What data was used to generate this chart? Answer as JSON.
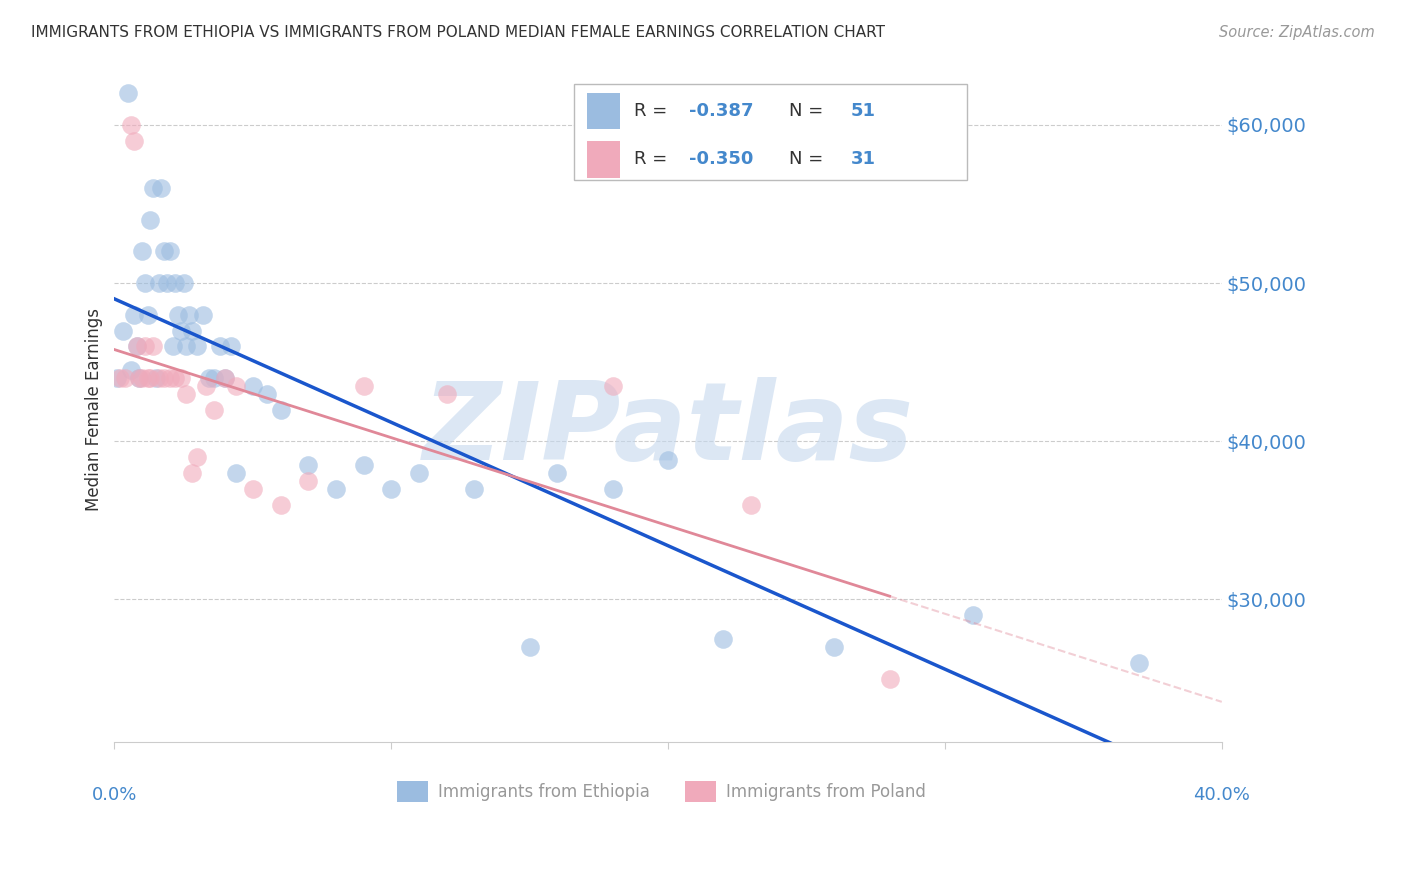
{
  "title": "IMMIGRANTS FROM ETHIOPIA VS IMMIGRANTS FROM POLAND MEDIAN FEMALE EARNINGS CORRELATION CHART",
  "source": "Source: ZipAtlas.com",
  "ylabel": "Median Female Earnings",
  "ytick_labels": [
    "$60,000",
    "$50,000",
    "$40,000",
    "$30,000"
  ],
  "ytick_values": [
    60000,
    50000,
    40000,
    30000
  ],
  "ymin": 21000,
  "ymax": 63000,
  "xmin": 0.0,
  "xmax": 0.4,
  "legend_R1": "-0.387",
  "legend_N1": "51",
  "legend_R2": "-0.350",
  "legend_N2": "31",
  "color_ethiopia": "#9BBCE0",
  "color_poland": "#F0AABB",
  "color_ethiopia_line": "#1a56cc",
  "color_poland_line": "#E08898",
  "color_axis": "#4488CC",
  "color_title": "#333333",
  "color_source": "#999999",
  "color_legend_text_black": "#333333",
  "color_legend_text_blue": "#4488CC",
  "watermark_text": "ZIPatlas",
  "watermark_color": "#C5D8EE",
  "bottom_legend_color": "#999999",
  "gridline_color": "#CCCCCC",
  "ethiopia_x": [
    0.001,
    0.003,
    0.005,
    0.006,
    0.007,
    0.008,
    0.009,
    0.01,
    0.011,
    0.012,
    0.013,
    0.014,
    0.015,
    0.016,
    0.017,
    0.018,
    0.019,
    0.02,
    0.021,
    0.022,
    0.023,
    0.024,
    0.025,
    0.026,
    0.027,
    0.028,
    0.03,
    0.032,
    0.034,
    0.036,
    0.038,
    0.04,
    0.042,
    0.044,
    0.05,
    0.055,
    0.06,
    0.07,
    0.08,
    0.09,
    0.1,
    0.11,
    0.13,
    0.15,
    0.16,
    0.18,
    0.2,
    0.22,
    0.26,
    0.31,
    0.37
  ],
  "ethiopia_y": [
    44000,
    47000,
    62000,
    44500,
    48000,
    46000,
    44000,
    52000,
    50000,
    48000,
    54000,
    56000,
    44000,
    50000,
    56000,
    52000,
    50000,
    52000,
    46000,
    50000,
    48000,
    47000,
    50000,
    46000,
    48000,
    47000,
    46000,
    48000,
    44000,
    44000,
    46000,
    44000,
    46000,
    38000,
    43500,
    43000,
    42000,
    38500,
    37000,
    38500,
    37000,
    38000,
    37000,
    27000,
    38000,
    37000,
    38800,
    27500,
    27000,
    29000,
    26000
  ],
  "poland_x": [
    0.002,
    0.004,
    0.006,
    0.007,
    0.008,
    0.009,
    0.01,
    0.011,
    0.012,
    0.013,
    0.014,
    0.016,
    0.018,
    0.02,
    0.022,
    0.024,
    0.026,
    0.028,
    0.03,
    0.033,
    0.036,
    0.04,
    0.044,
    0.05,
    0.06,
    0.07,
    0.09,
    0.12,
    0.18,
    0.23,
    0.28
  ],
  "poland_y": [
    44000,
    44000,
    60000,
    59000,
    46000,
    44000,
    44000,
    46000,
    44000,
    44000,
    46000,
    44000,
    44000,
    44000,
    44000,
    44000,
    43000,
    38000,
    39000,
    43500,
    42000,
    44000,
    43500,
    37000,
    36000,
    37500,
    43500,
    43000,
    43500,
    36000,
    25000
  ]
}
